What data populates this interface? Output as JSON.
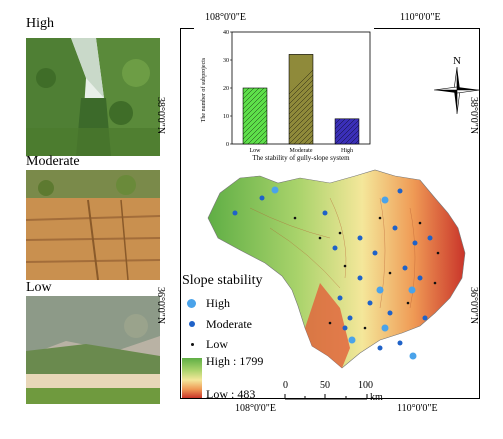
{
  "photos": [
    {
      "label": "High"
    },
    {
      "label": "Moderate"
    },
    {
      "label": "Low"
    }
  ],
  "coordinates": {
    "top_left": "108°0'0\"E",
    "top_right": "110°0'0\"E",
    "bottom_left": "108°0'0\"E",
    "bottom_right": "110°0'0\"E",
    "left_upper": "38°0'0\"N",
    "left_lower": "36°0'0\"N",
    "right_upper": "38°0'0\"N",
    "right_lower": "36°0'0\"N"
  },
  "north_arrow": {
    "label": "N"
  },
  "legend": {
    "title": "Slope stability",
    "items": [
      {
        "label": "High",
        "color": "#4aa3ea"
      },
      {
        "label": "Moderate",
        "color": "#1f62c8"
      },
      {
        "label": "Low",
        "color": "#111111"
      }
    ],
    "elevation_high": "High : 1799",
    "elevation_low": "Low : 483"
  },
  "scale_bar": {
    "ticks": [
      "0",
      "50",
      "100"
    ],
    "unit": "km"
  },
  "chart_data": {
    "type": "bar",
    "categories": [
      "Low",
      "Moderate",
      "High"
    ],
    "values": [
      20,
      32,
      9
    ],
    "ylabel": "The number of subprojects",
    "xlabel": "The stability of gully-slope system",
    "ylim": [
      0,
      40
    ],
    "yticks": [
      "0",
      "10",
      "20",
      "30",
      "40"
    ],
    "colors": [
      "#5ee04a",
      "#8f8a3a",
      "#3a2fb8"
    ]
  }
}
